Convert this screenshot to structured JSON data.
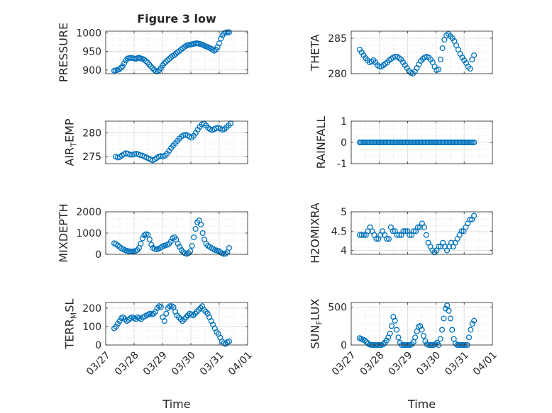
{
  "chart_data": [
    {
      "type": "scatter",
      "title": "Figure 3 low",
      "ylabel": "PRESSURE",
      "xlim": [
        0,
        5
      ],
      "ylim": [
        890,
        1005
      ],
      "yticks": [
        900,
        950,
        1000
      ],
      "ytick_labels": [
        "900",
        "950",
        "1000"
      ],
      "xtick_labels": [],
      "y": [
        898,
        899,
        900,
        902,
        906,
        910,
        918,
        926,
        931,
        932,
        933,
        932,
        931,
        930,
        932,
        933,
        931,
        930,
        928,
        924,
        920,
        915,
        910,
        905,
        900,
        897,
        896,
        899,
        905,
        912,
        918,
        922,
        926,
        930,
        934,
        938,
        940,
        944,
        948,
        951,
        955,
        958,
        962,
        965,
        967,
        968,
        969,
        970,
        971,
        972,
        972,
        971,
        970,
        968,
        966,
        964,
        962,
        960,
        958,
        955,
        952,
        955,
        962,
        972,
        985,
        994,
        999,
        1001,
        1002,
        1002
      ]
    },
    {
      "type": "scatter",
      "ylabel": "THETA",
      "xlim": [
        0,
        5
      ],
      "ylim": [
        280,
        286
      ],
      "yticks": [
        280,
        285
      ],
      "ytick_labels": [
        "280",
        "285"
      ],
      "xtick_labels": [],
      "y": [
        283.4,
        283.0,
        282.6,
        282.2,
        281.9,
        281.6,
        281.7,
        281.9,
        281.6,
        281.2,
        281.0,
        281.0,
        281.2,
        281.4,
        281.6,
        281.9,
        282.1,
        282.3,
        282.4,
        282.4,
        282.2,
        282.0,
        281.6,
        281.2,
        280.8,
        280.4,
        280.1,
        280.0,
        280.3,
        280.8,
        281.3,
        281.8,
        282.1,
        282.3,
        282.4,
        282.3,
        282.0,
        281.6,
        281.0,
        280.5,
        280.6,
        282.0,
        283.6,
        284.8,
        285.4,
        285.6,
        285.3,
        285.0,
        284.6,
        284.0,
        283.4,
        282.8,
        282.3,
        281.9,
        281.5,
        281.0,
        280.7,
        282.0,
        282.6
      ]
    },
    {
      "type": "scatter",
      "ylabel": "AIR_TEMP",
      "ylabel_parts": [
        "AIR",
        "T",
        "EMP"
      ],
      "xlim": [
        0,
        5
      ],
      "ylim": [
        273.5,
        282.5
      ],
      "yticks": [
        275,
        280
      ],
      "ytick_labels": [
        "275",
        "280"
      ],
      "xtick_labels": [],
      "y": [
        275.0,
        274.8,
        274.9,
        275.2,
        275.5,
        275.7,
        275.6,
        275.4,
        275.4,
        275.5,
        275.6,
        275.5,
        275.3,
        275.2,
        275.0,
        274.8,
        274.6,
        274.4,
        274.2,
        274.4,
        274.7,
        275.0,
        275.1,
        275.0,
        275.2,
        275.6,
        276.2,
        276.8,
        277.3,
        277.8,
        278.3,
        278.8,
        279.2,
        279.5,
        279.6,
        279.5,
        279.2,
        279.0,
        279.4,
        280.0,
        280.7,
        281.3,
        281.8,
        282.0,
        281.6,
        281.1,
        280.8,
        280.6,
        280.8,
        281.0,
        281.1,
        280.9,
        280.7,
        280.8,
        281.2,
        281.6,
        282.0
      ]
    },
    {
      "type": "scatter",
      "ylabel": "RAINFALL",
      "xlim": [
        0,
        5
      ],
      "ylim": [
        -1,
        1
      ],
      "yticks": [
        -1,
        0,
        1
      ],
      "ytick_labels": [
        "-1",
        "0",
        "1"
      ],
      "xtick_labels": [],
      "y_constant": 0,
      "n_points": 80
    },
    {
      "type": "scatter",
      "ylabel": "MIXDEPTH",
      "xlim": [
        0,
        5
      ],
      "ylim": [
        0,
        2000
      ],
      "yticks": [
        0,
        1000,
        2000
      ],
      "ytick_labels": [
        "0",
        "1000",
        "2000"
      ],
      "xtick_labels": [],
      "y": [
        520,
        480,
        420,
        350,
        290,
        240,
        200,
        170,
        150,
        140,
        130,
        140,
        160,
        200,
        300,
        500,
        750,
        900,
        950,
        920,
        700,
        450,
        300,
        250,
        240,
        260,
        300,
        350,
        400,
        420,
        450,
        500,
        600,
        750,
        800,
        700,
        500,
        350,
        200,
        100,
        50,
        20,
        60,
        150,
        400,
        800,
        1200,
        1500,
        1600,
        1400,
        1000,
        700,
        500,
        400,
        350,
        300,
        250,
        200,
        180,
        160,
        100,
        50,
        20,
        30,
        100,
        300
      ]
    },
    {
      "type": "scatter",
      "ylabel": "H2OMIXRA",
      "xlim": [
        0,
        5
      ],
      "ylim": [
        3.9,
        5.0
      ],
      "yticks": [
        4,
        4.5,
        5
      ],
      "ytick_labels": [
        "4",
        "4.5",
        "5"
      ],
      "xtick_labels": [],
      "y": [
        4.4,
        4.4,
        4.4,
        4.4,
        4.5,
        4.6,
        4.5,
        4.4,
        4.3,
        4.3,
        4.4,
        4.5,
        4.4,
        4.3,
        4.3,
        4.6,
        4.5,
        4.5,
        4.4,
        4.4,
        4.4,
        4.5,
        4.5,
        4.5,
        4.4,
        4.4,
        4.5,
        4.5,
        4.6,
        4.6,
        4.7,
        4.6,
        4.4,
        4.2,
        4.1,
        4.0,
        3.95,
        4.0,
        4.1,
        4.1,
        4.2,
        4.1,
        4.0,
        4.1,
        4.2,
        4.1,
        4.2,
        4.3,
        4.4,
        4.5,
        4.5,
        4.6,
        4.7,
        4.8,
        4.8,
        4.9
      ]
    },
    {
      "type": "scatter",
      "ylabel": "TERR_MSL",
      "ylabel_parts": [
        "TERR",
        "M",
        "SL"
      ],
      "xlim": [
        0,
        5
      ],
      "ylim": [
        0,
        230
      ],
      "yticks": [
        0,
        100,
        200
      ],
      "ytick_labels": [
        "0",
        "100",
        "200"
      ],
      "xtick_labels": [
        "03/27",
        "03/28",
        "03/29",
        "03/30",
        "03/31",
        "04/01"
      ],
      "xlabel": "Time",
      "y": [
        90,
        100,
        115,
        130,
        145,
        150,
        140,
        130,
        135,
        145,
        150,
        145,
        140,
        150,
        145,
        140,
        150,
        155,
        160,
        165,
        170,
        165,
        170,
        180,
        200,
        210,
        205,
        150,
        130,
        170,
        200,
        210,
        210,
        205,
        180,
        160,
        150,
        140,
        130,
        140,
        150,
        160,
        170,
        165,
        160,
        170,
        180,
        190,
        200,
        210,
        190,
        180,
        170,
        150,
        130,
        110,
        90,
        70,
        60,
        40,
        20,
        10,
        5,
        15,
        20
      ]
    },
    {
      "type": "scatter",
      "ylabel": "SUN_FLUX",
      "ylabel_parts": [
        "SUN",
        "F",
        "LUX"
      ],
      "xlim": [
        0,
        5
      ],
      "ylim": [
        0,
        560
      ],
      "yticks": [
        0,
        500
      ],
      "ytick_labels": [
        "0",
        "500"
      ],
      "xtick_labels": [
        "03/27",
        "03/28",
        "03/29",
        "03/30",
        "03/31",
        "04/01"
      ],
      "xlabel": "Time",
      "y": [
        90,
        80,
        70,
        60,
        40,
        20,
        5,
        0,
        0,
        0,
        0,
        0,
        0,
        0,
        10,
        30,
        60,
        100,
        150,
        250,
        370,
        320,
        200,
        100,
        30,
        0,
        0,
        0,
        0,
        0,
        0,
        10,
        40,
        100,
        180,
        240,
        250,
        200,
        120,
        50,
        10,
        0,
        0,
        0,
        0,
        10,
        30,
        0,
        80,
        200,
        350,
        480,
        520,
        450,
        350,
        200,
        80,
        20,
        0,
        0,
        0,
        0,
        0,
        0,
        0,
        100,
        200,
        280,
        320
      ]
    }
  ]
}
